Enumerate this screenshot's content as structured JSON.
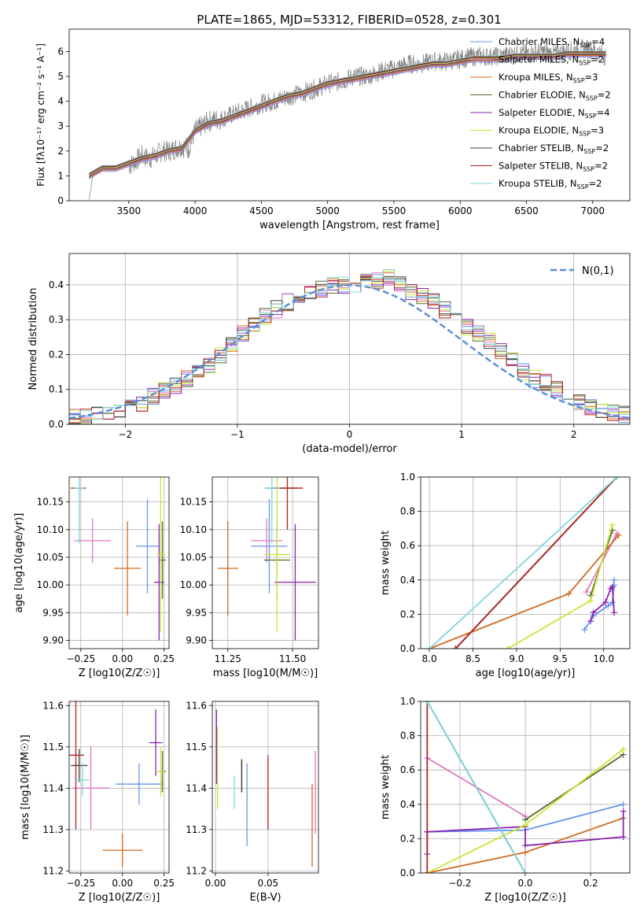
{
  "figure": {
    "title": "PLATE=1865, MJD=53312, FIBERID=0528, z=0.301"
  },
  "series": [
    {
      "name": "Chabrier MILES, N_SSP=4",
      "color": "#6495ed"
    },
    {
      "name": "Salpeter MILES, N_SSP=2",
      "color": "#e377c2"
    },
    {
      "name": "Kroupa MILES, N_SSP=3",
      "color": "#d2691e"
    },
    {
      "name": "Chabrier ELODIE, N_SSP=2",
      "color": "#556b2f"
    },
    {
      "name": "Salpeter ELODIE, N_SSP=4",
      "color": "#8b22b0"
    },
    {
      "name": "Kroupa ELODIE, N_SSP=3",
      "color": "#c8e632"
    },
    {
      "name": "Chabrier STELIB, N_SSP=2",
      "color": "#404040"
    },
    {
      "name": "Salpeter STELIB, N_SSP=2",
      "color": "#b22222"
    },
    {
      "name": "Kroupa STELIB, N_SSP=2",
      "color": "#7fd6dc"
    }
  ],
  "chart_data": [
    {
      "id": "spectrum",
      "type": "line",
      "xlabel": "wavelength [Angstrom, rest frame]",
      "ylabel": "Flux [f_λ 10^-17 erg cm^-2 s^-1 A^-1]",
      "xlim": [
        3050,
        7280
      ],
      "ylim": [
        0,
        6.9
      ],
      "xticks": [
        3500,
        4000,
        4500,
        5000,
        5500,
        6000,
        6500,
        7000
      ],
      "yticks": [
        0,
        1,
        2,
        3,
        4,
        5,
        6
      ],
      "legend": "top-right",
      "data_color": "#808080",
      "data": {
        "x": [
          3200,
          3230,
          3260,
          3300,
          3350,
          3400,
          3450,
          3500,
          3550,
          3600,
          3650,
          3700,
          3750,
          3800,
          3850,
          3900,
          3950,
          4000,
          4100,
          4200,
          4300,
          4400,
          4500,
          4600,
          4700,
          4800,
          4900,
          5000,
          5100,
          5200,
          5300,
          5400,
          5500,
          5600,
          5700,
          5800,
          5900,
          6000,
          6100,
          6200,
          6300,
          6400,
          6500,
          6600,
          6700,
          6800,
          6900,
          7000,
          7100
        ],
        "y": [
          0.0,
          1.0,
          1.2,
          1.3,
          1.3,
          1.35,
          1.3,
          1.4,
          1.6,
          1.8,
          1.7,
          1.8,
          2.0,
          2.0,
          2.1,
          2.2,
          2.1,
          2.8,
          3.2,
          3.3,
          3.5,
          3.7,
          3.9,
          4.0,
          4.2,
          4.3,
          4.5,
          4.7,
          4.8,
          5.0,
          5.0,
          5.2,
          5.3,
          5.5,
          5.5,
          5.6,
          5.6,
          5.7,
          5.8,
          5.8,
          5.8,
          5.9,
          5.9,
          6.0,
          5.9,
          6.0,
          6.1,
          6.1,
          5.8
        ]
      },
      "model": {
        "x": [
          3200,
          3300,
          3400,
          3500,
          3600,
          3700,
          3800,
          3900,
          4000,
          4100,
          4200,
          4300,
          4400,
          4500,
          4600,
          4700,
          4800,
          4900,
          5000,
          5100,
          5200,
          5300,
          5400,
          5500,
          5600,
          5700,
          5800,
          5900,
          6000,
          6100,
          6200,
          6300,
          6400,
          6500,
          6600,
          6700,
          6800,
          6900,
          7000,
          7100
        ],
        "y": [
          1.0,
          1.3,
          1.3,
          1.5,
          1.7,
          1.8,
          2.0,
          2.1,
          2.8,
          3.1,
          3.2,
          3.4,
          3.6,
          3.8,
          4.0,
          4.2,
          4.3,
          4.5,
          4.7,
          4.8,
          4.9,
          5.0,
          5.1,
          5.2,
          5.3,
          5.4,
          5.5,
          5.5,
          5.6,
          5.7,
          5.7,
          5.7,
          5.8,
          5.8,
          5.8,
          5.8,
          5.9,
          5.9,
          5.9,
          5.9
        ]
      }
    },
    {
      "id": "residuals",
      "type": "step",
      "xlabel": "(data-model)/error",
      "ylabel": "Normed distribution",
      "xlim": [
        -2.5,
        2.5
      ],
      "ylim": [
        0,
        0.49
      ],
      "xticks": [
        -2,
        -1,
        0,
        1,
        2
      ],
      "yticks": [
        0.0,
        0.1,
        0.2,
        0.3,
        0.4
      ],
      "legend_label": "N(0,1)",
      "gauss_color": "#5b8fd6",
      "bins": [
        -2.5,
        -2.4,
        -2.3,
        -2.2,
        -2.1,
        -2.0,
        -1.9,
        -1.8,
        -1.7,
        -1.6,
        -1.5,
        -1.4,
        -1.3,
        -1.2,
        -1.1,
        -1.0,
        -0.9,
        -0.8,
        -0.7,
        -0.6,
        -0.5,
        -0.4,
        -0.3,
        -0.2,
        -0.1,
        0.0,
        0.1,
        0.2,
        0.3,
        0.4,
        0.5,
        0.6,
        0.7,
        0.8,
        0.9,
        1.0,
        1.1,
        1.2,
        1.3,
        1.4,
        1.5,
        1.6,
        1.7,
        1.8,
        1.9,
        2.0,
        2.1,
        2.2,
        2.3,
        2.4,
        2.5
      ],
      "hist": [
        0.02,
        0.02,
        0.03,
        0.03,
        0.04,
        0.05,
        0.06,
        0.08,
        0.1,
        0.11,
        0.13,
        0.15,
        0.17,
        0.2,
        0.23,
        0.26,
        0.29,
        0.31,
        0.33,
        0.35,
        0.37,
        0.38,
        0.39,
        0.4,
        0.4,
        0.4,
        0.41,
        0.41,
        0.42,
        0.4,
        0.38,
        0.37,
        0.35,
        0.33,
        0.31,
        0.28,
        0.26,
        0.24,
        0.21,
        0.18,
        0.15,
        0.13,
        0.12,
        0.1,
        0.08,
        0.06,
        0.05,
        0.04,
        0.03,
        0.03
      ]
    },
    {
      "id": "age-vs-z",
      "type": "errorbar",
      "xlabel": "Z [log10(Z/Z☉)]",
      "ylabel": "age  [log10(age/yr)]",
      "xlim": [
        -0.32,
        0.28
      ],
      "ylim": [
        9.885,
        10.195
      ],
      "xticks": [
        -0.25,
        0.0,
        0.25
      ],
      "yticks": [
        9.9,
        9.95,
        10.0,
        10.05,
        10.1,
        10.15
      ],
      "points": [
        {
          "s": 0,
          "x": 0.15,
          "xe": 0.07,
          "y": 10.07,
          "ye": 0.085
        },
        {
          "s": 1,
          "x": -0.18,
          "xe": 0.11,
          "y": 10.08,
          "ye": 0.04
        },
        {
          "s": 2,
          "x": 0.03,
          "xe": 0.08,
          "y": 10.03,
          "ye": 0.085
        },
        {
          "s": 3,
          "x": 0.24,
          "xe": 0.02,
          "y": 10.045,
          "ye": 0.07
        },
        {
          "s": 4,
          "x": 0.22,
          "xe": 0.03,
          "y": 10.005,
          "ye": 0.105
        },
        {
          "s": 5,
          "x": 0.23,
          "xe": 0.025,
          "y": 10.055,
          "ye": 0.14
        },
        {
          "s": 6,
          "x": -0.255,
          "xe": 0.035,
          "y": 10.175,
          "ye": 0.0
        },
        {
          "s": 7,
          "x": -0.3,
          "xe": 0.01,
          "y": 10.175,
          "ye": 0.0
        },
        {
          "s": 8,
          "x": -0.26,
          "xe": 0.03,
          "y": 10.175,
          "ye": 0.1
        }
      ]
    },
    {
      "id": "age-vs-mass",
      "type": "errorbar",
      "xlabel": "mass [log10(M/M☉)]",
      "ylabel": "",
      "xlim": [
        11.19,
        11.6
      ],
      "ylim": [
        9.885,
        10.195
      ],
      "xticks": [
        11.25,
        11.5
      ],
      "yticks": [
        9.9,
        9.95,
        10.0,
        10.05,
        10.1,
        10.15
      ],
      "points": [
        {
          "s": 0,
          "x": 11.41,
          "xe": 0.07,
          "y": 10.07,
          "ye": 0.085
        },
        {
          "s": 1,
          "x": 11.4,
          "xe": 0.06,
          "y": 10.08,
          "ye": 0.04
        },
        {
          "s": 2,
          "x": 11.25,
          "xe": 0.04,
          "y": 10.03,
          "ye": 0.085
        },
        {
          "s": 3,
          "x": 11.44,
          "xe": 0.05,
          "y": 10.045,
          "ye": 0.07
        },
        {
          "s": 4,
          "x": 11.51,
          "xe": 0.08,
          "y": 10.005,
          "ye": 0.105
        },
        {
          "s": 5,
          "x": 11.44,
          "xe": 0.05,
          "y": 10.055,
          "ye": 0.14
        },
        {
          "s": 6,
          "x": 11.46,
          "xe": 0.06,
          "y": 10.175,
          "ye": 0.0
        },
        {
          "s": 7,
          "x": 11.48,
          "xe": 0.06,
          "y": 10.175,
          "ye": 0.075
        },
        {
          "s": 8,
          "x": 11.42,
          "xe": 0.03,
          "y": 10.175,
          "ye": 0.1
        }
      ]
    },
    {
      "id": "weight-vs-age",
      "type": "line",
      "xlabel": "age  [log10(age/yr)]",
      "ylabel": "mass weight",
      "xlim": [
        7.9,
        10.3
      ],
      "ylim": [
        0,
        1.0
      ],
      "xticks": [
        8.0,
        8.5,
        9.0,
        9.5,
        10.0
      ],
      "yticks": [
        0.0,
        0.2,
        0.4,
        0.6,
        0.8,
        1.0
      ],
      "lines": [
        {
          "s": 0,
          "x": [
            9.78,
            9.88,
            10.05,
            10.1,
            10.12,
            10.12
          ],
          "y": [
            0.11,
            0.19,
            0.25,
            0.27,
            0.37,
            0.4
          ]
        },
        {
          "s": 1,
          "x": [
            9.8,
            10.15
          ],
          "y": [
            0.33,
            0.67
          ]
        },
        {
          "s": 2,
          "x": [
            8.0,
            9.6,
            10.17
          ],
          "y": [
            0.0,
            0.32,
            0.66
          ]
        },
        {
          "s": 3,
          "x": [
            9.85,
            10.1
          ],
          "y": [
            0.31,
            0.69
          ]
        },
        {
          "s": 4,
          "x": [
            9.85,
            9.88,
            10.02,
            10.08,
            10.1,
            10.12
          ],
          "y": [
            0.16,
            0.21,
            0.27,
            0.35,
            0.36,
            0.21
          ]
        },
        {
          "s": 5,
          "x": [
            8.9,
            9.85,
            10.1
          ],
          "y": [
            0.0,
            0.28,
            0.72
          ]
        },
        {
          "s": 6,
          "x": [
            8.3,
            10.15
          ],
          "y": [
            0.0,
            1.0
          ]
        },
        {
          "s": 7,
          "x": [
            8.3,
            10.15
          ],
          "y": [
            0.0,
            1.0
          ]
        },
        {
          "s": 8,
          "x": [
            8.0,
            10.15
          ],
          "y": [
            0.0,
            1.0
          ]
        }
      ]
    },
    {
      "id": "mass-vs-z",
      "type": "errorbar",
      "xlabel": "Z [log10(Z/Z☉)]",
      "ylabel": "mass [log10(M/M☉)]",
      "xlim": [
        -0.32,
        0.28
      ],
      "ylim": [
        11.195,
        11.61
      ],
      "xticks": [
        -0.25,
        0.0,
        0.25
      ],
      "yticks": [
        11.2,
        11.3,
        11.4,
        11.5,
        11.6
      ],
      "points": [
        {
          "s": 0,
          "x": 0.1,
          "xe": 0.14,
          "y": 11.41,
          "ye": 0.05
        },
        {
          "s": 1,
          "x": -0.19,
          "xe": 0.11,
          "y": 11.4,
          "ye": 0.1
        },
        {
          "s": 2,
          "x": 0.0,
          "xe": 0.12,
          "y": 11.25,
          "ye": 0.04
        },
        {
          "s": 3,
          "x": 0.24,
          "xe": 0.02,
          "y": 11.44,
          "ye": 0.05
        },
        {
          "s": 4,
          "x": 0.2,
          "xe": 0.04,
          "y": 11.51,
          "ye": 0.08
        },
        {
          "s": 5,
          "x": 0.23,
          "xe": 0.02,
          "y": 11.44,
          "ye": 0.06
        },
        {
          "s": 6,
          "x": -0.26,
          "xe": 0.05,
          "y": 11.455,
          "ye": 0.04
        },
        {
          "s": 7,
          "x": -0.28,
          "xe": 0.05,
          "y": 11.48,
          "ye": 0.18
        },
        {
          "s": 8,
          "x": -0.24,
          "xe": 0.04,
          "y": 11.42,
          "ye": 0.04
        }
      ]
    },
    {
      "id": "mass-vs-ebv",
      "type": "errorbar",
      "xlabel": "E(B-V)",
      "ylabel": "",
      "xlim": [
        -0.003,
        0.098
      ],
      "ylim": [
        11.195,
        11.61
      ],
      "xticks": [
        0.0,
        0.05
      ],
      "yticks": [
        11.2,
        11.3,
        11.4,
        11.5,
        11.6
      ],
      "points": [
        {
          "s": 0,
          "x": 0.03,
          "xe": 0.0,
          "y": 11.36,
          "ye": 0.1
        },
        {
          "s": 1,
          "x": 0.095,
          "xe": 0.0,
          "y": 11.39,
          "ye": 0.1
        },
        {
          "s": 2,
          "x": 0.092,
          "xe": 0.0,
          "y": 11.31,
          "ye": 0.1
        },
        {
          "s": 3,
          "x": 0.025,
          "xe": 0.0,
          "y": 11.43,
          "ye": 0.04
        },
        {
          "s": 4,
          "x": 0.001,
          "xe": 0.0,
          "y": 11.5,
          "ye": 0.09
        },
        {
          "s": 5,
          "x": 0.002,
          "xe": 0.0,
          "y": 11.45,
          "ye": 0.1
        },
        {
          "s": 6,
          "x": 0.025,
          "xe": 0.0,
          "y": 11.43,
          "ye": 0.04
        },
        {
          "s": 7,
          "x": 0.05,
          "xe": 0.0,
          "y": 11.39,
          "ye": 0.09
        },
        {
          "s": 8,
          "x": 0.018,
          "xe": 0.0,
          "y": 11.39,
          "ye": 0.04
        }
      ]
    },
    {
      "id": "weight-vs-z",
      "type": "line",
      "xlabel": "Z [log10(Z/Z☉)]",
      "ylabel": "mass weight",
      "xlim": [
        -0.32,
        0.32
      ],
      "ylim": [
        0,
        1.0
      ],
      "xticks": [
        -0.2,
        0.0,
        0.2
      ],
      "yticks": [
        0.0,
        0.2,
        0.4,
        0.6,
        0.8,
        1.0
      ],
      "lines": [
        {
          "s": 0,
          "x": [
            -0.3,
            0.0,
            0.3
          ],
          "y": [
            0.24,
            0.25,
            0.4
          ]
        },
        {
          "s": 1,
          "x": [
            -0.3,
            0.0
          ],
          "y": [
            0.67,
            0.33
          ]
        },
        {
          "s": 2,
          "x": [
            -0.3,
            0.0,
            0.3
          ],
          "y": [
            0.0,
            0.12,
            0.32
          ]
        },
        {
          "s": 3,
          "x": [
            0.0,
            0.3
          ],
          "y": [
            0.31,
            0.69
          ]
        },
        {
          "s": 4,
          "x": [
            -0.3,
            -0.3,
            0.0,
            0.0,
            0.3,
            0.3
          ],
          "y": [
            0.11,
            0.24,
            0.27,
            0.16,
            0.21,
            0.36
          ]
        },
        {
          "s": 5,
          "x": [
            -0.3,
            0.0,
            0.3
          ],
          "y": [
            0.0,
            0.28,
            0.72
          ]
        },
        {
          "s": 6,
          "x": [
            -0.3,
            0.0
          ],
          "y": [
            1.0,
            0.0
          ]
        },
        {
          "s": 7,
          "x": [
            -0.3,
            -0.3
          ],
          "y": [
            0.0,
            1.0
          ]
        },
        {
          "s": 8,
          "x": [
            -0.3,
            0.0
          ],
          "y": [
            1.0,
            0.0
          ]
        }
      ]
    }
  ]
}
